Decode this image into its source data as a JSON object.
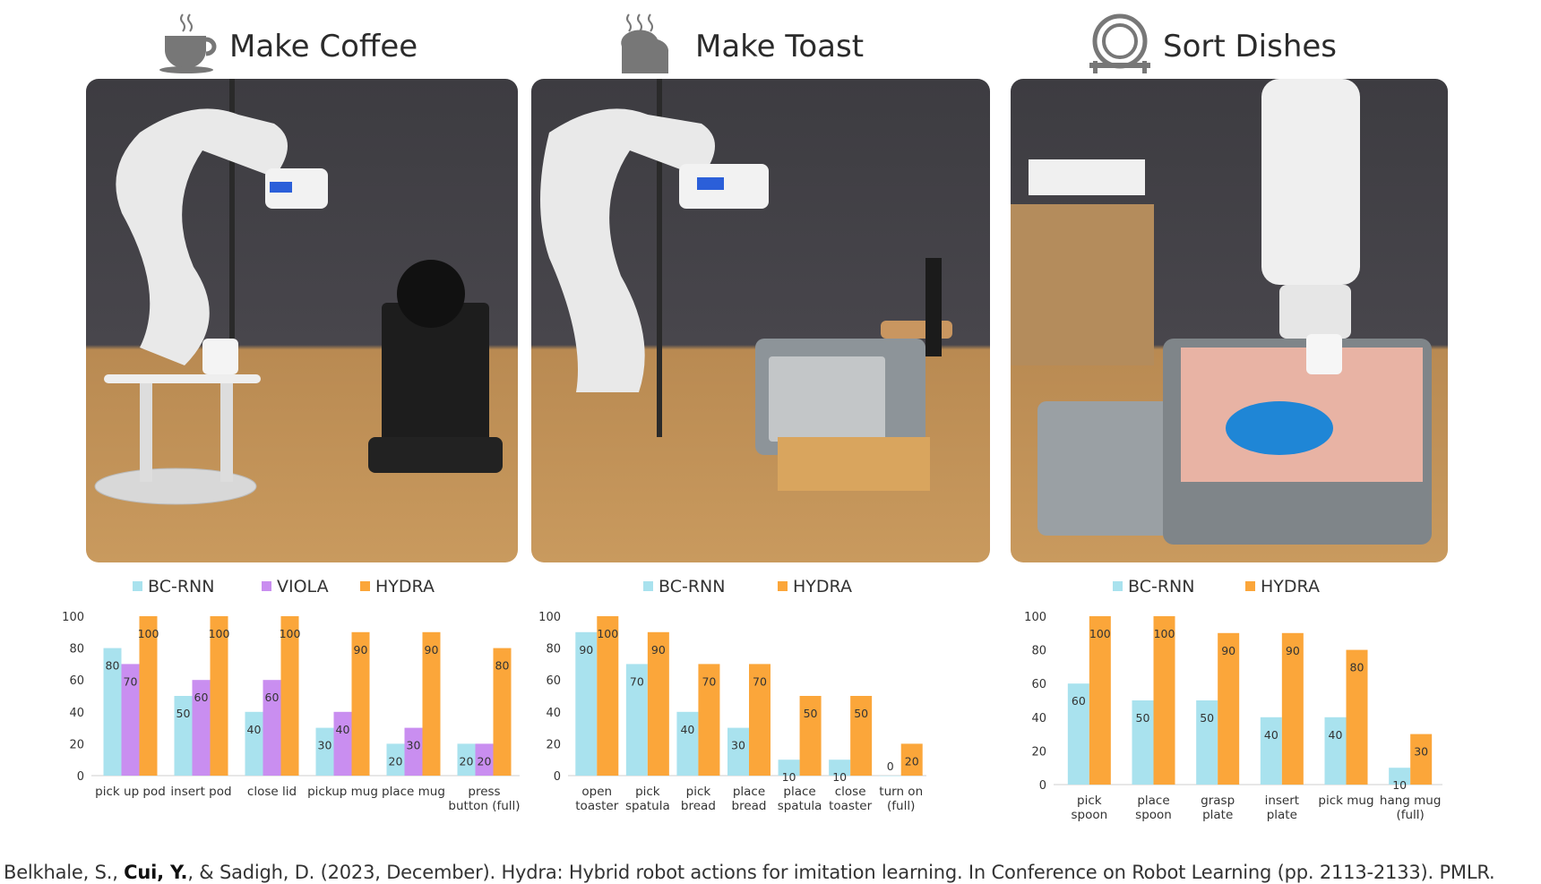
{
  "panels": [
    {
      "title": "Make Coffee",
      "icon": "coffee-cup-icon",
      "legend": [
        "BC-RNN",
        "VIOLA",
        "HYDRA"
      ]
    },
    {
      "title": "Make Toast",
      "icon": "toast-icon",
      "legend": [
        "BC-RNN",
        "HYDRA"
      ]
    },
    {
      "title": "Sort Dishes",
      "icon": "dish-rack-icon",
      "legend": [
        "BC-RNN",
        "HYDRA"
      ]
    }
  ],
  "colors": {
    "BC-RNN": "#a9e2ee",
    "VIOLA": "#c98ef0",
    "HYDRA": "#fba63a"
  },
  "chart_data": [
    {
      "type": "bar",
      "title": "",
      "xlabel": "",
      "ylabel": "",
      "ylim": [
        0,
        100
      ],
      "yticks": [
        0,
        20,
        40,
        60,
        80,
        100
      ],
      "categories": [
        [
          "pick up pod"
        ],
        [
          "insert pod"
        ],
        [
          "close lid"
        ],
        [
          "pickup mug"
        ],
        [
          "place mug"
        ],
        [
          "press",
          "button (full)"
        ]
      ],
      "series": [
        {
          "name": "BC-RNN",
          "values": [
            80,
            50,
            40,
            30,
            20,
            20
          ]
        },
        {
          "name": "VIOLA",
          "values": [
            70,
            60,
            60,
            40,
            30,
            20
          ]
        },
        {
          "name": "HYDRA",
          "values": [
            100,
            100,
            100,
            90,
            90,
            80
          ]
        }
      ],
      "legend_position": "top"
    },
    {
      "type": "bar",
      "title": "",
      "xlabel": "",
      "ylabel": "",
      "ylim": [
        0,
        100
      ],
      "yticks": [
        0,
        20,
        40,
        60,
        80,
        100
      ],
      "categories": [
        [
          "open",
          "toaster"
        ],
        [
          "pick",
          "spatula"
        ],
        [
          "pick",
          "bread"
        ],
        [
          "place",
          "bread"
        ],
        [
          "place",
          "spatula"
        ],
        [
          "close",
          "toaster"
        ],
        [
          "turn on",
          "(full)"
        ]
      ],
      "series": [
        {
          "name": "BC-RNN",
          "values": [
            90,
            70,
            40,
            30,
            10,
            10,
            0
          ]
        },
        {
          "name": "HYDRA",
          "values": [
            100,
            90,
            70,
            70,
            50,
            50,
            20
          ]
        }
      ],
      "legend_position": "top"
    },
    {
      "type": "bar",
      "title": "",
      "xlabel": "",
      "ylabel": "",
      "ylim": [
        0,
        100
      ],
      "yticks": [
        0,
        20,
        40,
        60,
        80,
        100
      ],
      "categories": [
        [
          "pick",
          "spoon"
        ],
        [
          "place",
          "spoon"
        ],
        [
          "grasp",
          "plate"
        ],
        [
          "insert",
          "plate"
        ],
        [
          "pick mug"
        ],
        [
          "hang mug",
          "(full)"
        ]
      ],
      "series": [
        {
          "name": "BC-RNN",
          "values": [
            60,
            50,
            50,
            40,
            40,
            10
          ]
        },
        {
          "name": "HYDRA",
          "values": [
            100,
            100,
            90,
            90,
            80,
            30
          ]
        }
      ],
      "legend_position": "top"
    }
  ],
  "citation": {
    "before": "Belkhale, S., ",
    "bold": "Cui, Y.",
    "after": ", & Sadigh, D. (2023, December). Hydra: Hybrid robot actions for imitation learning. In Conference on Robot Learning (pp. 2113-2133). PMLR."
  }
}
